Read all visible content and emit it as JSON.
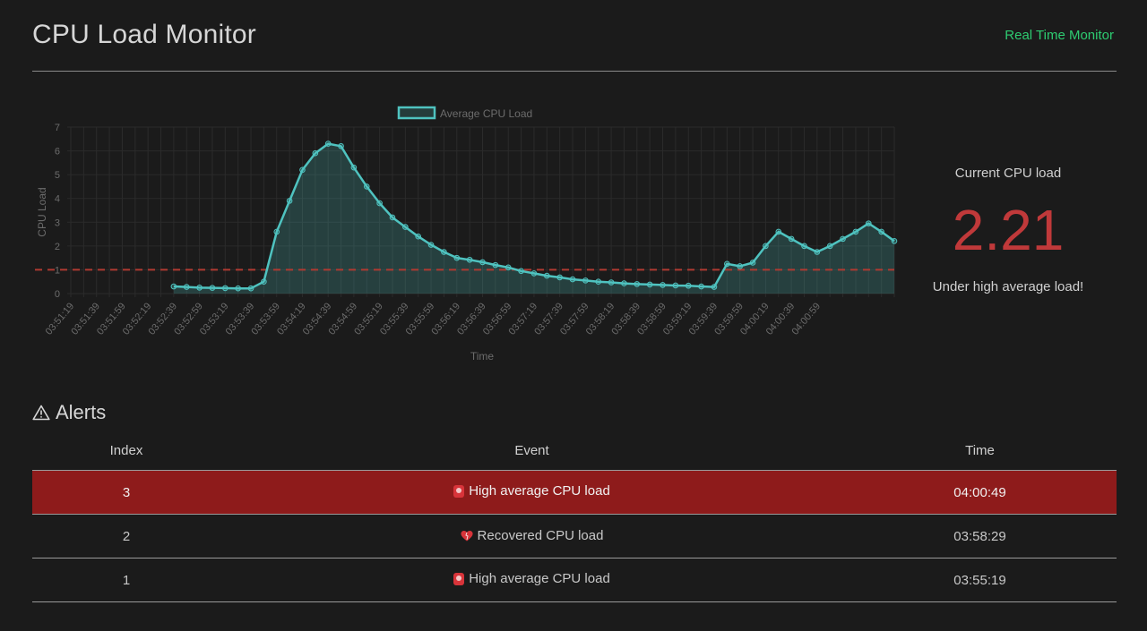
{
  "header": {
    "title": "CPU Load Monitor",
    "nav_link": "Real Time Monitor"
  },
  "chart_data": {
    "type": "line",
    "legend": "Average CPU Load",
    "xlabel": "Time",
    "ylabel": "CPU Load",
    "ylim": [
      0,
      7
    ],
    "yticks": [
      0,
      1,
      2,
      3,
      4,
      5,
      6,
      7
    ],
    "threshold": 1,
    "tick_labels": [
      "03:51:19",
      "03:51:39",
      "03:51:59",
      "03:52:19",
      "03:52:39",
      "03:52:59",
      "03:53:19",
      "03:53:39",
      "03:53:59",
      "03:54:19",
      "03:54:39",
      "03:54:59",
      "03:55:19",
      "03:55:39",
      "03:55:59",
      "03:56:19",
      "03:56:39",
      "03:56:59",
      "03:57:19",
      "03:57:39",
      "03:57:59",
      "03:58:19",
      "03:58:39",
      "03:58:59",
      "03:59:19",
      "03:59:39",
      "03:59:59",
      "04:00:19",
      "04:00:39",
      "04:00:59"
    ],
    "series": [
      {
        "name": "Average CPU Load",
        "color": "#4fc3c0",
        "values": [
          null,
          null,
          null,
          null,
          null,
          null,
          null,
          null,
          0.3,
          0.28,
          0.25,
          0.24,
          0.23,
          0.22,
          0.22,
          0.5,
          2.6,
          3.9,
          5.2,
          5.9,
          6.3,
          6.2,
          5.3,
          4.5,
          3.8,
          3.2,
          2.8,
          2.4,
          2.05,
          1.75,
          1.5,
          1.42,
          1.32,
          1.2,
          1.1,
          0.95,
          0.85,
          0.75,
          0.68,
          0.6,
          0.55,
          0.5,
          0.47,
          0.43,
          0.4,
          0.38,
          0.36,
          0.34,
          0.33,
          0.3,
          0.28,
          1.25,
          1.15,
          1.3,
          2.0,
          2.6,
          2.3,
          2.0,
          1.75,
          2.0,
          2.3,
          2.6,
          2.95,
          2.6,
          2.21
        ]
      }
    ]
  },
  "current": {
    "label": "Current CPU load",
    "value": "2.21",
    "status": "Under high average load!"
  },
  "alerts": {
    "title": "Alerts",
    "columns": {
      "index": "Index",
      "event": "Event",
      "time": "Time"
    },
    "rows": [
      {
        "index": "3",
        "event": "High average CPU load",
        "icon": "siren-icon",
        "time": "04:00:49"
      },
      {
        "index": "2",
        "event": "Recovered CPU load",
        "icon": "heart-icon",
        "time": "03:58:29"
      },
      {
        "index": "1",
        "event": "High average CPU load",
        "icon": "siren-icon",
        "time": "03:55:19"
      }
    ]
  },
  "colors": {
    "accent": "#2ecc71",
    "alert_red": "#c0393a",
    "active_row": "#8e1b1b",
    "line": "#4fc3c0",
    "threshold": "#b03a32"
  }
}
